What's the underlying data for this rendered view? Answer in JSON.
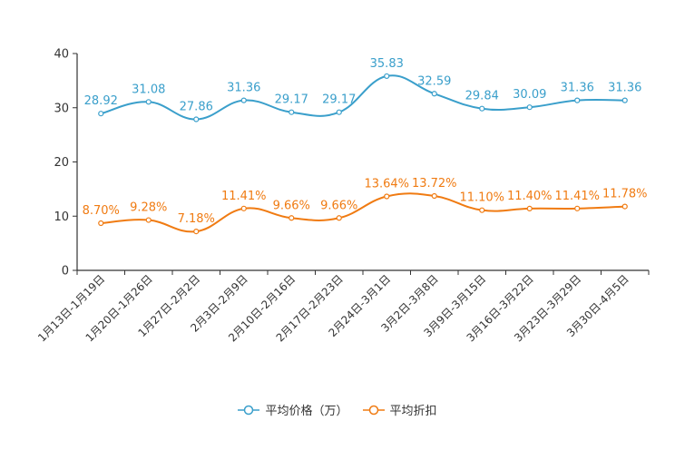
{
  "chart_data": {
    "type": "line",
    "categories": [
      "1月13日-1月19日",
      "1月20日-1月26日",
      "1月27日-2月2日",
      "2月3日-2月9日",
      "2月10日-2月16日",
      "2月17日-2月23日",
      "2月24日-3月1日",
      "3月2日-3月8日",
      "3月9日-3月15日",
      "3月16日-3月22日",
      "3月23日-3月29日",
      "3月30日-4月5日"
    ],
    "ylim": [
      0,
      40
    ],
    "yticks": [
      0,
      10,
      20,
      30,
      40
    ],
    "series": [
      {
        "name": "平均价格（万）",
        "color": "#3a9fcb",
        "values": [
          28.92,
          31.08,
          27.86,
          31.36,
          29.17,
          29.17,
          35.83,
          32.59,
          29.84,
          30.09,
          31.36,
          31.36
        ],
        "labels": [
          "28.92",
          "31.08",
          "27.86",
          "31.36",
          "29.17",
          "29.17",
          "35.83",
          "32.59",
          "29.84",
          "30.09",
          "31.36",
          "31.36"
        ]
      },
      {
        "name": "平均折扣",
        "color": "#f07b12",
        "values": [
          8.7,
          9.28,
          7.18,
          11.41,
          9.66,
          9.66,
          13.64,
          13.72,
          11.1,
          11.4,
          11.41,
          11.78
        ],
        "labels": [
          "8.70%",
          "9.28%",
          "7.18%",
          "11.41%",
          "9.66%",
          "9.66%",
          "13.64%",
          "13.72%",
          "11.10%",
          "11.40%",
          "11.41%",
          "11.78%"
        ]
      }
    ]
  }
}
